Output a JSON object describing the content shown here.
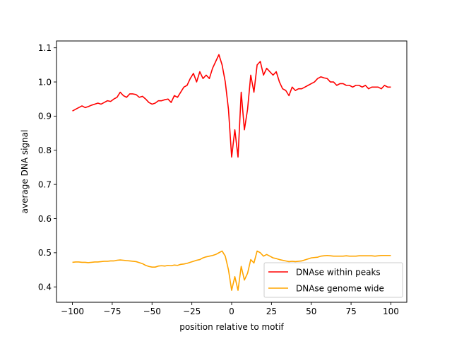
{
  "chart_data": {
    "type": "line",
    "title": "",
    "xlabel": "position relative to motif",
    "ylabel": "average DNA signal",
    "xlim": [
      -110,
      110
    ],
    "ylim": [
      0.355,
      1.12
    ],
    "xticks": [
      -100,
      -75,
      -50,
      -25,
      0,
      25,
      50,
      75,
      100
    ],
    "yticks": [
      0.4,
      0.5,
      0.6,
      0.7,
      0.8,
      0.9,
      1.0,
      1.1
    ],
    "ytick_labels": [
      "0.4",
      "0.5",
      "0.6",
      "0.7",
      "0.8",
      "0.9",
      "1.0",
      "1.1"
    ],
    "grid": false,
    "legend_position": "lower-right",
    "x": [
      -100,
      -98,
      -96,
      -94,
      -92,
      -90,
      -88,
      -86,
      -84,
      -82,
      -80,
      -78,
      -76,
      -74,
      -72,
      -70,
      -68,
      -66,
      -64,
      -62,
      -60,
      -58,
      -56,
      -54,
      -52,
      -50,
      -48,
      -46,
      -44,
      -42,
      -40,
      -38,
      -36,
      -34,
      -32,
      -30,
      -28,
      -26,
      -24,
      -22,
      -20,
      -18,
      -16,
      -14,
      -12,
      -10,
      -8,
      -6,
      -4,
      -2,
      0,
      2,
      4,
      6,
      8,
      10,
      12,
      14,
      16,
      18,
      20,
      22,
      24,
      26,
      28,
      30,
      32,
      34,
      36,
      38,
      40,
      42,
      44,
      46,
      48,
      50,
      52,
      54,
      56,
      58,
      60,
      62,
      64,
      66,
      68,
      70,
      72,
      74,
      76,
      78,
      80,
      82,
      84,
      86,
      88,
      90,
      92,
      94,
      96,
      98,
      100
    ],
    "series": [
      {
        "name": "DNAse within peaks",
        "color": "#ff0000",
        "values": [
          0.915,
          0.92,
          0.925,
          0.93,
          0.925,
          0.928,
          0.932,
          0.935,
          0.938,
          0.935,
          0.94,
          0.945,
          0.943,
          0.95,
          0.955,
          0.97,
          0.96,
          0.955,
          0.965,
          0.965,
          0.963,
          0.955,
          0.958,
          0.95,
          0.94,
          0.935,
          0.938,
          0.945,
          0.945,
          0.948,
          0.95,
          0.94,
          0.96,
          0.955,
          0.97,
          0.985,
          0.99,
          1.01,
          1.025,
          1.0,
          1.03,
          1.01,
          1.02,
          1.01,
          1.04,
          1.06,
          1.08,
          1.05,
          1.0,
          0.92,
          0.78,
          0.86,
          0.78,
          0.97,
          0.86,
          0.92,
          1.02,
          0.97,
          1.05,
          1.06,
          1.02,
          1.04,
          1.03,
          1.02,
          1.03,
          1.0,
          0.98,
          0.975,
          0.96,
          0.985,
          0.975,
          0.98,
          0.98,
          0.985,
          0.99,
          0.995,
          1.0,
          1.01,
          1.015,
          1.012,
          1.01,
          1.0,
          1.0,
          0.99,
          0.995,
          0.995,
          0.99,
          0.99,
          0.985,
          0.99,
          0.99,
          0.985,
          0.99,
          0.98,
          0.985,
          0.985,
          0.985,
          0.98,
          0.99,
          0.985,
          0.985
        ]
      },
      {
        "name": "DNAse genome wide",
        "color": "#ffa500",
        "values": [
          0.472,
          0.473,
          0.473,
          0.472,
          0.472,
          0.471,
          0.472,
          0.473,
          0.473,
          0.474,
          0.475,
          0.475,
          0.476,
          0.476,
          0.478,
          0.479,
          0.478,
          0.477,
          0.476,
          0.475,
          0.474,
          0.471,
          0.468,
          0.463,
          0.46,
          0.458,
          0.458,
          0.461,
          0.462,
          0.461,
          0.463,
          0.462,
          0.464,
          0.463,
          0.466,
          0.467,
          0.469,
          0.472,
          0.475,
          0.478,
          0.48,
          0.485,
          0.488,
          0.49,
          0.492,
          0.495,
          0.5,
          0.505,
          0.49,
          0.45,
          0.39,
          0.43,
          0.39,
          0.46,
          0.42,
          0.44,
          0.48,
          0.47,
          0.505,
          0.5,
          0.49,
          0.495,
          0.49,
          0.485,
          0.483,
          0.48,
          0.478,
          0.476,
          0.474,
          0.475,
          0.474,
          0.475,
          0.476,
          0.479,
          0.482,
          0.485,
          0.486,
          0.487,
          0.49,
          0.491,
          0.492,
          0.491,
          0.49,
          0.49,
          0.49,
          0.49,
          0.491,
          0.49,
          0.49,
          0.49,
          0.491,
          0.491,
          0.491,
          0.491,
          0.491,
          0.49,
          0.491,
          0.492,
          0.492,
          0.492,
          0.492
        ]
      }
    ]
  }
}
